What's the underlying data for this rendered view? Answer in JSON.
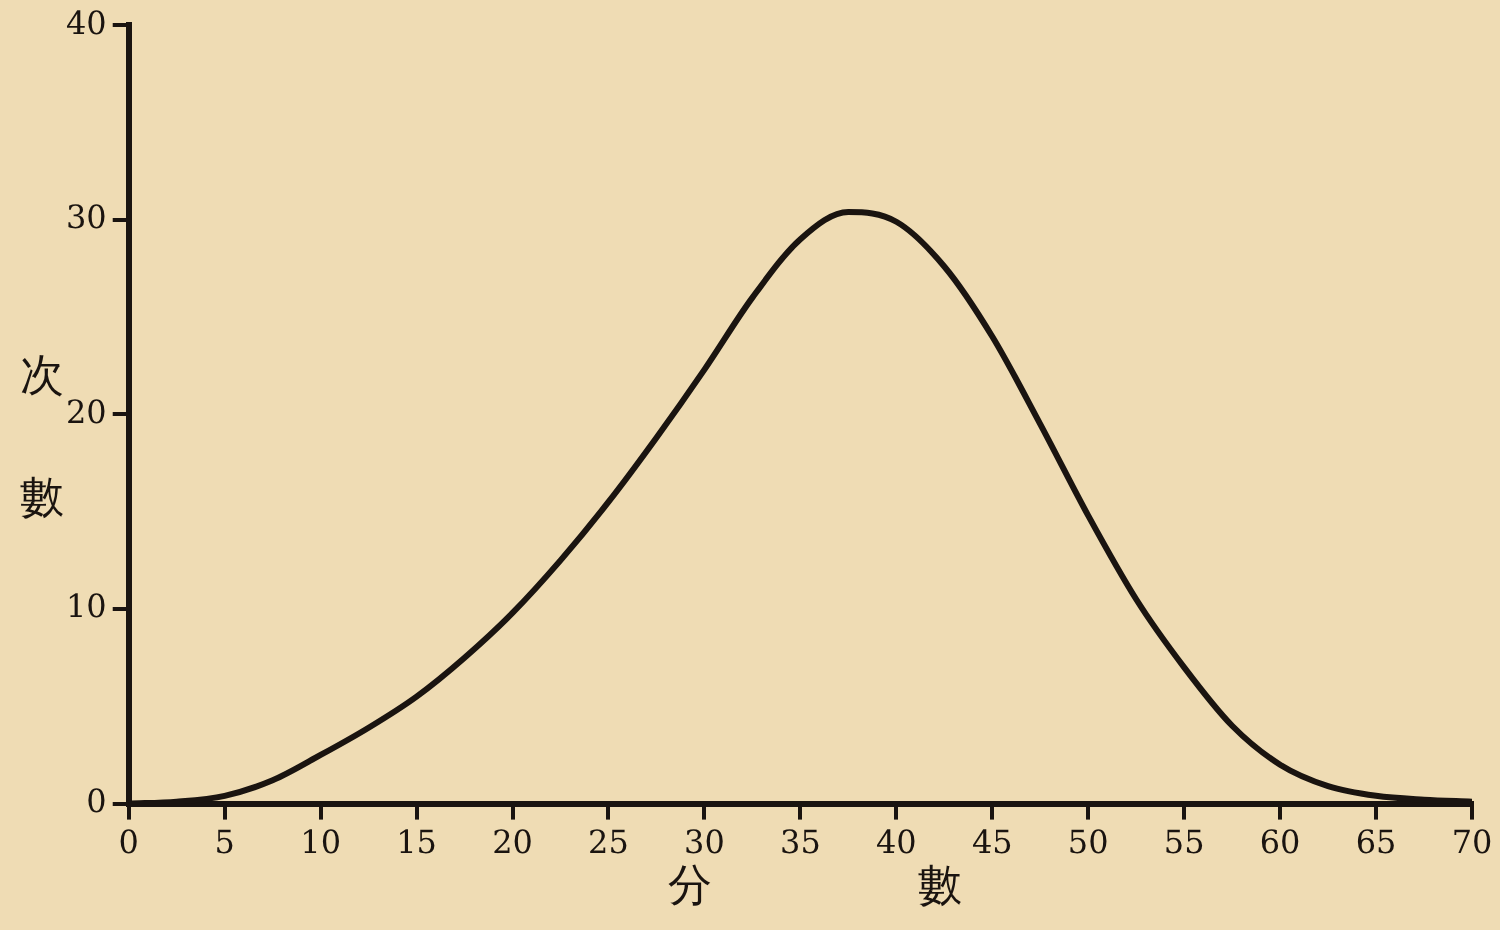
{
  "chart_data": {
    "type": "line",
    "xlabel": "分數",
    "ylabel": "次數",
    "x": [
      0,
      2.5,
      5,
      7.5,
      10,
      12.5,
      15,
      17.5,
      20,
      22.5,
      25,
      27.5,
      30,
      32.5,
      35,
      37.5,
      40,
      42.5,
      45,
      47.5,
      50,
      52.5,
      55,
      57.5,
      60,
      62.5,
      65,
      67.5,
      70
    ],
    "series": [
      {
        "color": "#1a1410",
        "values": [
          0,
          0.1,
          0.4,
          1.2,
          2.5,
          3.9,
          5.5,
          7.5,
          9.8,
          12.5,
          15.5,
          18.8,
          22.3,
          26,
          29,
          30.4,
          29.9,
          27.6,
          24,
          19.5,
          14.8,
          10.5,
          7,
          4,
          2,
          0.9,
          0.4,
          0.2,
          0.1
        ]
      }
    ],
    "xlim": [
      0,
      70
    ],
    "xticks": [
      0,
      5,
      10,
      15,
      20,
      25,
      30,
      35,
      40,
      45,
      50,
      55,
      60,
      65,
      70
    ],
    "ylim": [
      0,
      40
    ],
    "yticks": [
      0,
      10,
      20,
      30,
      40
    ],
    "grid": false,
    "legend": false,
    "marker": "none",
    "line_style": "solid"
  }
}
